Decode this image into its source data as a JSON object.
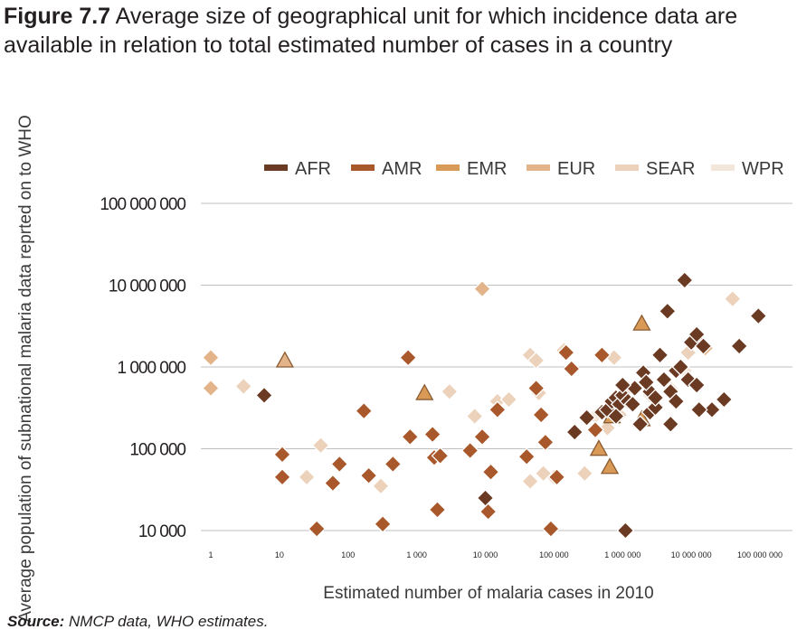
{
  "figure": {
    "number": "Figure 7.7",
    "title": "Average size of geographical unit for which incidence data are available in relation to total estimated number of cases in a country",
    "source_label": "Source:",
    "source_text": "NMCP data, WHO estimates."
  },
  "colors": {
    "AFR": "#6b3a22",
    "AMR": "#a8582a",
    "EMR": "#d89a56",
    "EUR": "#e3b48a",
    "SEAR": "#ecd2bb",
    "WPR": "#f3e6da",
    "grid": "#bfbfbf"
  },
  "chart_data": {
    "type": "scatter",
    "title": "",
    "xlabel": "Estimated number of malaria cases in 2010",
    "ylabel": "Average population of subnational malaria data reprted on to WHO",
    "x_scale": "log",
    "y_scale": "log",
    "xlim": [
      1,
      100000000
    ],
    "ylim": [
      10000,
      100000000
    ],
    "x_ticks": [
      1,
      10,
      100,
      1000,
      10000,
      100000,
      1000000,
      10000000,
      100000000
    ],
    "x_tick_labels": [
      "1",
      "10",
      "100",
      "1 000",
      "10 000",
      "100 000",
      "1 000 000",
      "10 000 000",
      "100 000 000"
    ],
    "y_ticks": [
      10000,
      100000,
      1000000,
      10000000,
      100000000
    ],
    "y_tick_labels": [
      "10 000",
      "100 000",
      "1 000 000",
      "10 000 000",
      "100 000 000"
    ],
    "grid": "horizontal",
    "legend_position": "top-right",
    "series": [
      {
        "name": "AFR",
        "marker": "diamond",
        "points": [
          [
            6,
            450000
          ],
          [
            2500000,
            280000
          ],
          [
            200000,
            160000
          ],
          [
            50000000,
            1800000
          ],
          [
            300000,
            240000
          ],
          [
            500000,
            280000
          ],
          [
            600000,
            300000
          ],
          [
            700000,
            380000
          ],
          [
            800000,
            420000
          ],
          [
            900000,
            350000
          ],
          [
            1000000,
            450000
          ],
          [
            1200000,
            380000
          ],
          [
            1500000,
            550000
          ],
          [
            1800000,
            200000
          ],
          [
            2000000,
            850000
          ],
          [
            2500000,
            500000
          ],
          [
            3000000,
            320000
          ],
          [
            3500000,
            1400000
          ],
          [
            4000000,
            700000
          ],
          [
            5000000,
            500000
          ],
          [
            6000000,
            900000
          ],
          [
            7000000,
            1000000
          ],
          [
            8000000,
            11500000
          ],
          [
            9000000,
            700000
          ],
          [
            10000000,
            2000000
          ],
          [
            12000000,
            2500000
          ],
          [
            15000000,
            1800000
          ],
          [
            4500000,
            4800000
          ],
          [
            3000000,
            420000
          ],
          [
            5000000,
            200000
          ],
          [
            20000000,
            300000
          ],
          [
            30000000,
            400000
          ],
          [
            95000000,
            4200000
          ],
          [
            1000000,
            600000
          ],
          [
            1400000,
            350000
          ],
          [
            2200000,
            650000
          ],
          [
            800000,
            250000
          ],
          [
            12000000,
            600000
          ],
          [
            13000000,
            300000
          ],
          [
            6000000,
            380000
          ],
          [
            10000,
            25000
          ],
          [
            1100000,
            10000
          ]
        ]
      },
      {
        "name": "AMR",
        "marker": "diamond",
        "points": [
          [
            11,
            85000
          ],
          [
            11,
            45000
          ],
          [
            35,
            10500
          ],
          [
            60,
            38000
          ],
          [
            75,
            65000
          ],
          [
            170,
            290000
          ],
          [
            200,
            47000
          ],
          [
            320,
            12000
          ],
          [
            450,
            65000
          ],
          [
            750,
            1300000
          ],
          [
            800,
            140000
          ],
          [
            1800,
            78000
          ],
          [
            1700,
            150000
          ],
          [
            2000,
            18000
          ],
          [
            2200,
            82000
          ],
          [
            6000,
            95000
          ],
          [
            9000,
            140000
          ],
          [
            11000,
            17000
          ],
          [
            12000,
            52000
          ],
          [
            15000,
            300000
          ],
          [
            40000,
            80000
          ],
          [
            55000,
            550000
          ],
          [
            65000,
            260000
          ],
          [
            75000,
            120000
          ],
          [
            90000,
            10500
          ],
          [
            150000,
            1500000
          ],
          [
            180000,
            950000
          ],
          [
            110000,
            45000
          ],
          [
            500000,
            1400000
          ],
          [
            400000,
            170000
          ]
        ]
      },
      {
        "name": "EMR",
        "marker": "triangle",
        "points": [
          [
            1900000,
            3400000
          ],
          [
            12000000,
            2300000
          ],
          [
            1300,
            480000
          ],
          [
            450000,
            100000
          ],
          [
            650000,
            60000
          ],
          [
            1900000,
            230000
          ],
          [
            700000,
            250000
          ]
        ]
      },
      {
        "name": "EUR",
        "marker": "both",
        "points": [
          [
            1,
            1300000
          ],
          [
            1,
            550000
          ],
          [
            12,
            1200000
          ],
          [
            9000,
            9000000
          ],
          [
            16000000,
            1700000
          ]
        ]
      },
      {
        "name": "SEAR",
        "marker": "diamond",
        "points": [
          [
            40,
            110000
          ],
          [
            3,
            580000
          ],
          [
            25,
            45000
          ],
          [
            300,
            35000
          ],
          [
            3000,
            500000
          ],
          [
            7000,
            250000
          ],
          [
            15000,
            380000
          ],
          [
            22000,
            400000
          ],
          [
            45000,
            1400000
          ],
          [
            55000,
            1200000
          ],
          [
            60000,
            480000
          ],
          [
            100000,
            45000
          ],
          [
            140000,
            1600000
          ],
          [
            280000,
            50000
          ],
          [
            600000,
            180000
          ],
          [
            750000,
            1300000
          ],
          [
            900000,
            260000
          ],
          [
            1200000,
            550000
          ],
          [
            40000000,
            6800000
          ],
          [
            9000000,
            1500000
          ],
          [
            45000,
            40000
          ],
          [
            70000,
            50000
          ]
        ]
      },
      {
        "name": "WPR",
        "marker": "diamond",
        "points": [
          [
            5000000,
            550000
          ],
          [
            400000,
            250000
          ],
          [
            2500000,
            450000
          ],
          [
            8000000,
            900000
          ]
        ]
      }
    ]
  }
}
